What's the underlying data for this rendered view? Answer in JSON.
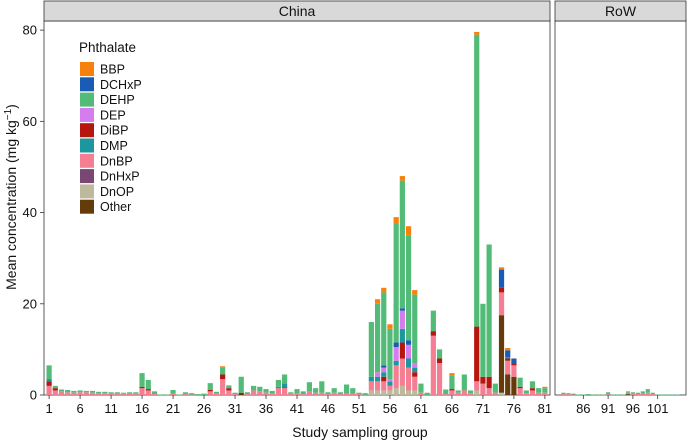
{
  "chart_data": {
    "type": "bar",
    "stacked": true,
    "facets": [
      "China",
      "RoW"
    ],
    "xlabel": "Study sampling group",
    "ylabel": "Mean concentration (mg kg",
    "ylabel_superscript": "−1",
    "ylabel_close": ")",
    "ylim": [
      0,
      82
    ],
    "yticks": [
      0,
      20,
      40,
      60,
      80
    ],
    "facet_groups": {
      "China": [
        1,
        81
      ],
      "RoW": [
        82,
        105
      ]
    },
    "xticks": {
      "China": [
        1,
        6,
        11,
        16,
        21,
        26,
        31,
        36,
        41,
        46,
        51,
        56,
        61,
        66,
        71,
        76,
        81
      ],
      "RoW": [
        86,
        91,
        96,
        101
      ]
    },
    "legend": {
      "title": "Phthalate",
      "position": "top-left",
      "entries": [
        {
          "name": "BBP",
          "color": "#F8800D"
        },
        {
          "name": "DCHxP",
          "color": "#1A5BB5"
        },
        {
          "name": "DEHP",
          "color": "#52BB78"
        },
        {
          "name": "DEP",
          "color": "#D57DEE"
        },
        {
          "name": "DiBP",
          "color": "#B5170F"
        },
        {
          "name": "DMP",
          "color": "#1C97A0"
        },
        {
          "name": "DnBP",
          "color": "#F57E92"
        },
        {
          "name": "DnHxP",
          "color": "#7A4673"
        },
        {
          "name": "DnOP",
          "color": "#BDB99C"
        },
        {
          "name": "Other",
          "color": "#653B0C"
        }
      ]
    },
    "stack_order": [
      "DnOP",
      "Other",
      "DnBP",
      "DiBP",
      "DnHxP",
      "DMP",
      "DEP",
      "DCHxP",
      "DEHP",
      "BBP"
    ],
    "bars": [
      {
        "group": 1,
        "DEHP": 3.0,
        "DnBP": 2.0,
        "DiBP": 1.0,
        "DMP": 0.5
      },
      {
        "group": 2,
        "DEHP": 0.5,
        "DnBP": 1.0,
        "DiBP": 0.5
      },
      {
        "group": 3,
        "DEHP": 0.4,
        "DnBP": 0.8
      },
      {
        "group": 4,
        "DEHP": 0.5,
        "DnBP": 0.6
      },
      {
        "group": 5,
        "DEHP": 0.4,
        "DnBP": 0.5
      },
      {
        "group": 6,
        "DEHP": 0.4,
        "DnBP": 0.6
      },
      {
        "group": 7,
        "DEHP": 0.3,
        "DnBP": 0.6
      },
      {
        "group": 8,
        "DEHP": 0.4,
        "DnBP": 0.5
      },
      {
        "group": 9,
        "DEHP": 0.3,
        "DnBP": 0.4
      },
      {
        "group": 10,
        "DEHP": 0.3,
        "DnBP": 0.4
      },
      {
        "group": 11,
        "DEHP": 0.3,
        "DnBP": 0.3
      },
      {
        "group": 12,
        "DEHP": 0.3,
        "DnBP": 0.3
      },
      {
        "group": 13,
        "DEHP": 0.2,
        "DnBP": 0.3
      },
      {
        "group": 14,
        "DEHP": 0.3,
        "DnBP": 0.3
      },
      {
        "group": 15,
        "DEHP": 0.3,
        "DnBP": 0.3
      },
      {
        "group": 16,
        "DEHP": 3.0,
        "DnBP": 1.5,
        "DiBP": 0.3
      },
      {
        "group": 17,
        "DEHP": 2.0,
        "DnBP": 1.0,
        "DiBP": 0.3
      },
      {
        "group": 18,
        "DEHP": 0.6,
        "DnBP": 0.2
      },
      {
        "group": 19,
        "DEHP": 0.1
      },
      {
        "group": 20,
        "DEHP": 0.1
      },
      {
        "group": 21,
        "DEHP": 0.8,
        "DnBP": 0.3
      },
      {
        "group": 22,
        "DEHP": 0.1
      },
      {
        "group": 23,
        "DEHP": 0.4,
        "DnBP": 0.2
      },
      {
        "group": 24,
        "DEHP": 0.3,
        "DnBP": 0.1
      },
      {
        "group": 25,
        "DEHP": 0.2
      },
      {
        "group": 26,
        "DEHP": 0.3
      },
      {
        "group": 27,
        "DEHP": 1.5,
        "DnBP": 0.8,
        "DiBP": 0.3
      },
      {
        "group": 28,
        "DEHP": 0.4,
        "DnBP": 0.3
      },
      {
        "group": 29,
        "DEHP": 1.5,
        "DnBP": 3.5,
        "DiBP": 1.0,
        "BBP": 0.3
      },
      {
        "group": 30,
        "DEHP": 0.6,
        "DnBP": 1.0,
        "DiBP": 0.5
      },
      {
        "group": 31,
        "DEHP": 0.3,
        "DnBP": 0.2
      },
      {
        "group": 32,
        "DEHP": 3.5,
        "Other": 0.5
      },
      {
        "group": 33,
        "DEHP": 0.4,
        "DnBP": 0.2
      },
      {
        "group": 34,
        "DEHP": 1.0,
        "DnBP": 1.0
      },
      {
        "group": 35,
        "DEHP": 1.0,
        "DnBP": 0.8
      },
      {
        "group": 36,
        "DEHP": 0.8,
        "DnBP": 0.5
      },
      {
        "group": 37,
        "DEHP": 0.6,
        "DnBP": 0.3
      },
      {
        "group": 38,
        "DEHP": 1.5,
        "DnBP": 1.5,
        "DMP": 0.3
      },
      {
        "group": 39,
        "DEHP": 2.0,
        "DnBP": 1.5,
        "DMP": 0.8,
        "DiBP": 0.2
      },
      {
        "group": 40,
        "DEHP": 0.3,
        "DnBP": 0.3
      },
      {
        "group": 41,
        "DEHP": 1.0,
        "DnBP": 0.3
      },
      {
        "group": 42,
        "DEHP": 0.6,
        "DnBP": 0.2
      },
      {
        "group": 43,
        "DEHP": 2.0,
        "DnBP": 0.8
      },
      {
        "group": 44,
        "DEHP": 1.0,
        "DnBP": 0.5
      },
      {
        "group": 45,
        "DEHP": 2.5,
        "DnBP": 0.5
      },
      {
        "group": 46,
        "DEHP": 0.4,
        "DnBP": 0.2
      },
      {
        "group": 47,
        "DEHP": 1.0,
        "DnBP": 0.5
      },
      {
        "group": 48,
        "DEHP": 0.4,
        "DnBP": 0.2
      },
      {
        "group": 49,
        "DEHP": 2.0,
        "DnBP": 0.3
      },
      {
        "group": 50,
        "DEHP": 1.2,
        "DnBP": 0.3
      },
      {
        "group": 51,
        "DEHP": 0.3,
        "DnBP": 0.2
      },
      {
        "group": 52,
        "DEHP": 0.4
      },
      {
        "group": 53,
        "DEHP": 12.0,
        "DnBP": 2.0,
        "DMP": 1.0,
        "DnOP": 1.0
      },
      {
        "group": 54,
        "DEHP": 15.0,
        "DnBP": 2.0,
        "DMP": 1.0,
        "DEP": 1.0,
        "DnOP": 1.0,
        "BBP": 1.0
      },
      {
        "group": 55,
        "DEHP": 16.0,
        "DnBP": 2.0,
        "DMP": 1.0,
        "DEP": 1.0,
        "DnOP": 1.0,
        "BBP": 1.0,
        "DiBP": 1.0,
        "DCHxP": 0.5
      },
      {
        "group": 56,
        "DEHP": 11.0,
        "DnBP": 1.0,
        "DMP": 1.0,
        "DEP": 0.5,
        "DnOP": 1.0,
        "BBP": 1.0
      },
      {
        "group": 57,
        "DEHP": 26.0,
        "DnBP": 5.0,
        "DMP": 1.0,
        "DEP": 3.0,
        "DnOP": 1.5,
        "BBP": 1.5,
        "DCHxP": 1.0
      },
      {
        "group": 58,
        "DEHP": 28.0,
        "DnBP": 6.0,
        "DMP": 3.0,
        "DEP": 4.0,
        "DnOP": 2.0,
        "BBP": 1.0,
        "DCHxP": 0.5,
        "DiBP": 3.5
      },
      {
        "group": 59,
        "DEHP": 23.0,
        "DnBP": 5.0,
        "DMP": 2.0,
        "DEP": 3.0,
        "DnOP": 1.0,
        "BBP": 2.0,
        "DCHxP": 1.0
      },
      {
        "group": 60,
        "DEHP": 15.0,
        "DnBP": 3.0,
        "DMP": 1.0,
        "DEP": 1.0,
        "DnOP": 1.0,
        "BBP": 1.0,
        "DiBP": 1.0
      },
      {
        "group": 61,
        "DEHP": 2.0,
        "DnBP": 0.5
      },
      {
        "group": 62,
        "DEHP": 0.5
      },
      {
        "group": 63,
        "DEHP": 4.5,
        "DnBP": 13.0,
        "DiBP": 1.0
      },
      {
        "group": 64,
        "DEHP": 2.0,
        "DnBP": 7.0,
        "DiBP": 1.0
      },
      {
        "group": 65,
        "DEHP": 1.0,
        "DnBP": 0.2
      },
      {
        "group": 66,
        "DEHP": 3.0,
        "DnBP": 1.0,
        "DiBP": 0.3,
        "BBP": 0.5
      },
      {
        "group": 67,
        "DEHP": 0.5,
        "DnBP": 0.5
      },
      {
        "group": 68,
        "DEHP": 3.5,
        "DnBP": 1.0
      },
      {
        "group": 69,
        "DEHP": 0.6,
        "DnBP": 0.4
      },
      {
        "group": 70,
        "DEHP": 64.0,
        "DnBP": 2.0,
        "DiBP": 12.0,
        "DnOP": 1.0,
        "BBP": 0.6
      },
      {
        "group": 71,
        "DEHP": 16.0,
        "DnBP": 2.5,
        "DiBP": 1.5
      },
      {
        "group": 72,
        "DEHP": 29.0,
        "DnBP": 1.5,
        "DiBP": 2.5
      },
      {
        "group": 73,
        "DEHP": 2.0,
        "DnBP": 0.5
      },
      {
        "group": 74,
        "Other": 17.0,
        "DnBP": 5.0,
        "DiBP": 1.0,
        "DCHxP": 4.0,
        "BBP": 0.5,
        "DnOP": 0.5
      },
      {
        "group": 75,
        "Other": 4.5,
        "DnBP": 3.0,
        "DiBP": 0.5,
        "DCHxP": 1.5,
        "BBP": 0.5,
        "DMP": 0.3
      },
      {
        "group": 76,
        "Other": 4.0,
        "DnBP": 2.5,
        "DiBP": 0.5,
        "DCHxP": 1.0
      },
      {
        "group": 77,
        "DEHP": 2.0,
        "DnBP": 1.5,
        "DiBP": 0.3
      },
      {
        "group": 78,
        "DEHP": 0.6,
        "DnBP": 0.4
      },
      {
        "group": 79,
        "DEHP": 1.5,
        "DnBP": 1.0,
        "DiBP": 0.5
      },
      {
        "group": 80,
        "DEHP": 1.0,
        "DnBP": 0.5
      },
      {
        "group": 81,
        "DEHP": 1.0,
        "DnBP": 0.5,
        "BBP": 0.3
      },
      {
        "group": 82,
        "DEHP": 0.3,
        "DnBP": 0.2
      },
      {
        "group": 83,
        "DEHP": 0.2,
        "DnBP": 0.2
      },
      {
        "group": 84,
        "DEHP": 0.2,
        "DnBP": 0.1
      },
      {
        "group": 85,
        "DEHP": 0.1
      },
      {
        "group": 86,
        "DEHP": 0.1
      },
      {
        "group": 87,
        "DEHP": 0.2
      },
      {
        "group": 88,
        "DEHP": 0.1
      },
      {
        "group": 89,
        "DEHP": 0.1
      },
      {
        "group": 90,
        "DEHP": 0.1
      },
      {
        "group": 91,
        "DEHP": 0.4,
        "DnBP": 0.2
      },
      {
        "group": 92,
        "DEHP": 0.1
      },
      {
        "group": 93,
        "DEHP": 0.1
      },
      {
        "group": 94,
        "DEHP": 0.1
      },
      {
        "group": 95,
        "DEHP": 0.3,
        "DnBP": 0.3,
        "Other": 0.2
      },
      {
        "group": 96,
        "DEHP": 0.3,
        "DnBP": 0.3
      },
      {
        "group": 97,
        "DEHP": 0.3,
        "DnBP": 0.2
      },
      {
        "group": 98,
        "DEHP": 0.5,
        "DnBP": 0.3
      },
      {
        "group": 99,
        "DEHP": 0.8,
        "DnBP": 0.5
      },
      {
        "group": 100,
        "DEHP": 0.3,
        "DnBP": 0.2
      },
      {
        "group": 101,
        "DEHP": 0.1
      },
      {
        "group": 102,
        "DEHP": 0.1
      },
      {
        "group": 103,
        "DEHP": 0.1
      },
      {
        "group": 104,
        "DEHP": 0.1
      },
      {
        "group": 105,
        "DEHP": 0.1
      }
    ]
  }
}
